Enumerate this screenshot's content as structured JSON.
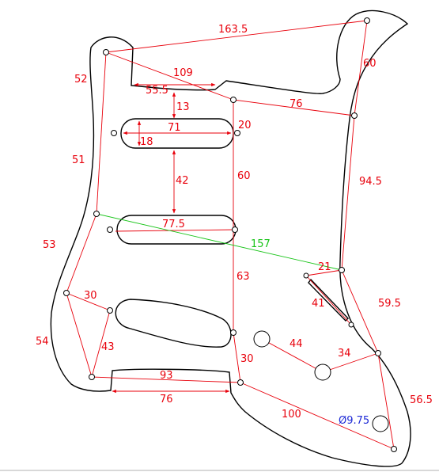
{
  "colors": {
    "outline": "#000000",
    "dimension": "#e8000b",
    "long_dimension": "#18c418",
    "diameter": "#1f2bd6"
  },
  "dimensions": {
    "d163_5": "163.5",
    "d52": "52",
    "d109": "109",
    "d55_5": "55.5",
    "d60_top": "60",
    "d76_top": "76",
    "d13": "13",
    "d71": "71",
    "d18": "18",
    "d20": "20",
    "d51": "51",
    "d42": "42",
    "d60_mid": "60",
    "d94_5": "94.5",
    "d77_5": "77.5",
    "d157": "157",
    "d53": "53",
    "d21": "21",
    "d63": "63",
    "d30_left": "30",
    "d41": "41",
    "d59_5": "59.5",
    "d54": "54",
    "d43": "43",
    "d44": "44",
    "d34": "34",
    "d30_bottom": "30",
    "d93": "93",
    "d76_bottom": "76",
    "d100": "100",
    "d56_5": "56.5",
    "diameter": "Ø9.75"
  }
}
